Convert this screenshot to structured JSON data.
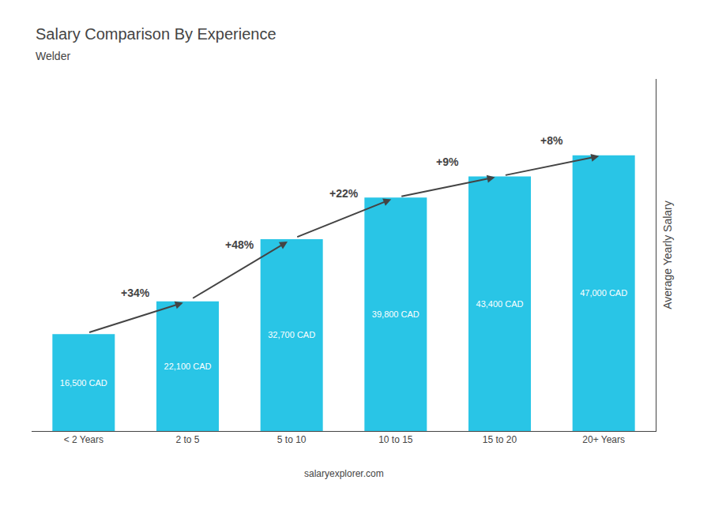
{
  "chart_data": {
    "type": "bar",
    "title": "Salary Comparison By Experience",
    "subtitle": "Welder",
    "categories": [
      "< 2 Years",
      "2 to 5",
      "5 to 10",
      "10 to 15",
      "15 to 20",
      "20+ Years"
    ],
    "values": [
      16500,
      22100,
      32700,
      39800,
      43400,
      47000
    ],
    "value_labels": [
      "16,500 CAD",
      "22,100 CAD",
      "32,700 CAD",
      "39,800 CAD",
      "43,400 CAD",
      "47,000 CAD"
    ],
    "data_labels": true,
    "color": "#29c5e6",
    "ylabel": "Average Yearly Salary",
    "ylim": [
      0,
      60000
    ],
    "yticks": [],
    "tick_labels": "x",
    "grid": false,
    "annotations": [
      "+34%",
      "+48%",
      "+22%",
      "+9%",
      "+8%"
    ],
    "footer": "salaryexplorer.com"
  }
}
